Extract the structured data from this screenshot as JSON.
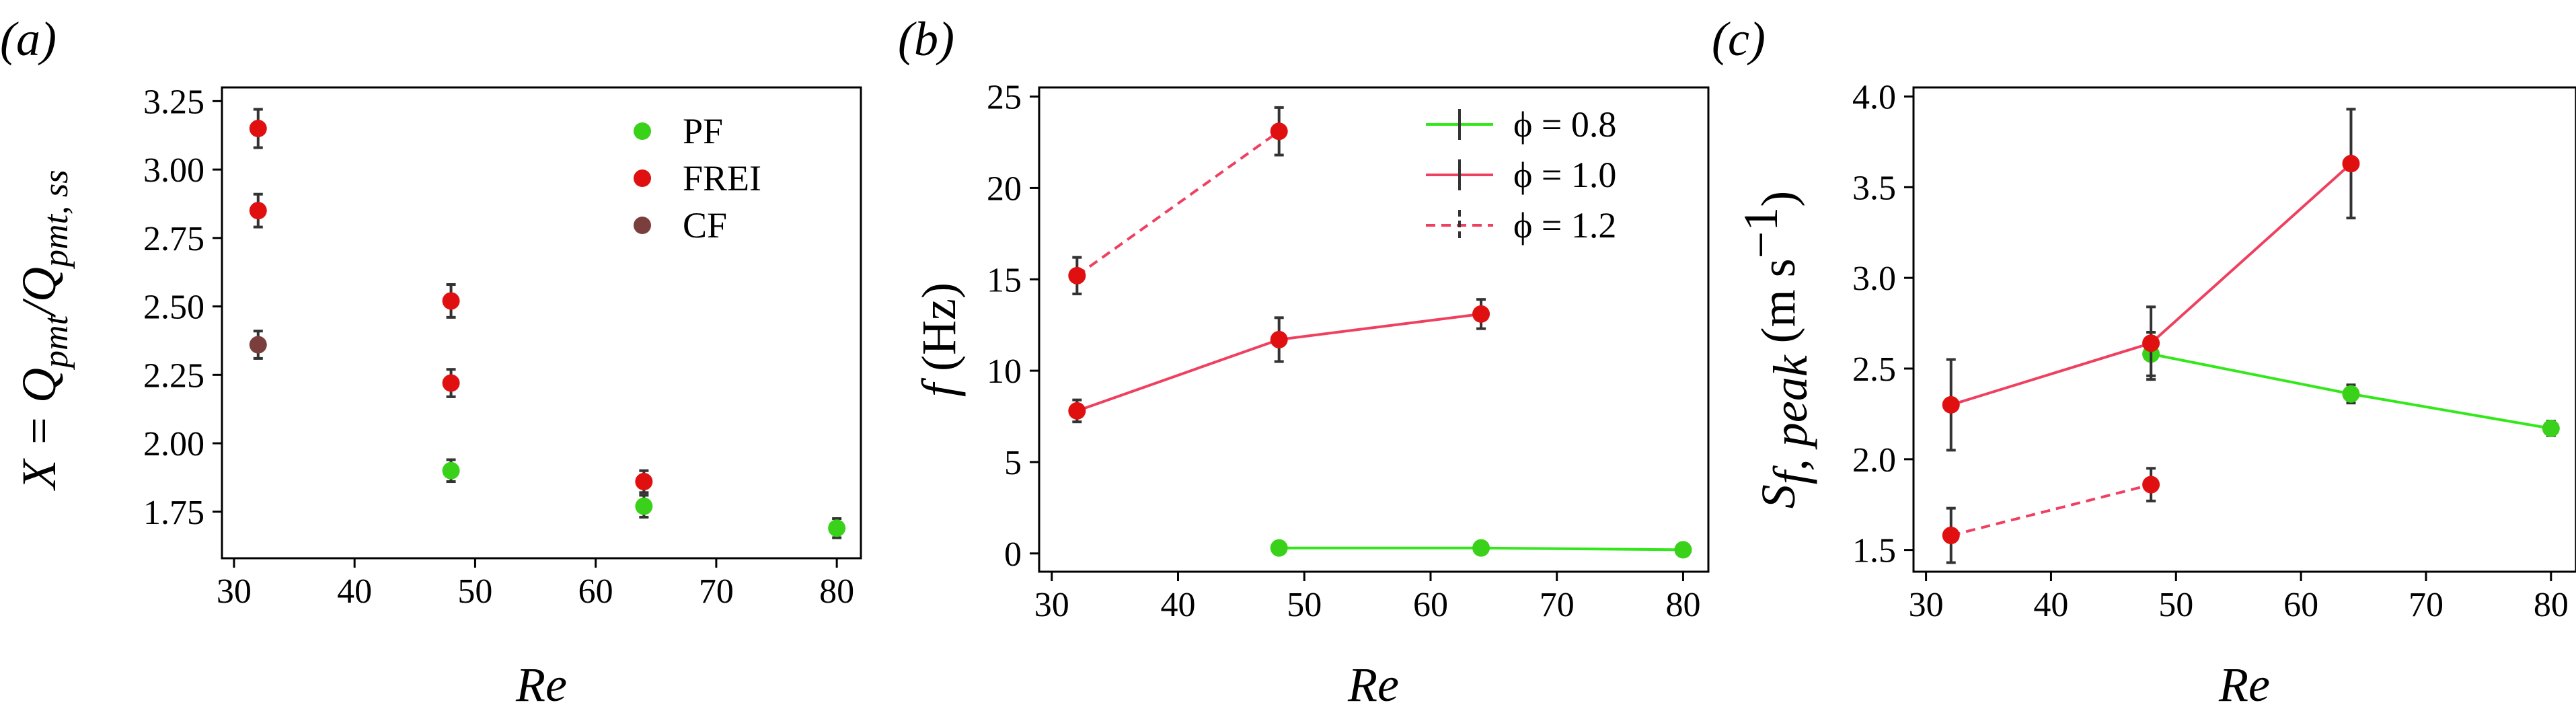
{
  "colors": {
    "pf": "#3ad11a",
    "frei": "#e01010",
    "cf": "#7a3e3c",
    "line_phi08": "#33e81a",
    "line_phi10": "#ef4060",
    "line_phi12": "#ef4060",
    "errorbar": "#333333"
  },
  "chart_data": [
    {
      "panel": "(a)",
      "type": "scatter",
      "xlabel": "Re",
      "ylabel": "X = Q_pmt/Q_pmt, ss",
      "xlim": [
        29,
        82
      ],
      "ylim": [
        1.58,
        3.3
      ],
      "xticks": [
        30,
        40,
        50,
        60,
        70,
        80
      ],
      "yticks": [
        1.75,
        2.0,
        2.25,
        2.5,
        2.75,
        3.0,
        3.25
      ],
      "ytick_labels": [
        "1.75",
        "2.00",
        "2.25",
        "2.50",
        "2.75",
        "3.00",
        "3.25"
      ],
      "legend_position": "top-right",
      "series": [
        {
          "name": "PF",
          "key": "pf",
          "points": [
            {
              "x": 48,
              "y": 1.9,
              "err": 0.04
            },
            {
              "x": 64,
              "y": 1.77,
              "err": 0.04
            },
            {
              "x": 80,
              "y": 1.69,
              "err": 0.035
            }
          ]
        },
        {
          "name": "FREI",
          "key": "frei",
          "points": [
            {
              "x": 32,
              "y": 3.15,
              "err": 0.07
            },
            {
              "x": 32,
              "y": 2.85,
              "err": 0.06
            },
            {
              "x": 48,
              "y": 2.52,
              "err": 0.06
            },
            {
              "x": 48,
              "y": 2.22,
              "err": 0.05
            },
            {
              "x": 64,
              "y": 1.86,
              "err": 0.04
            }
          ]
        },
        {
          "name": "CF",
          "key": "cf",
          "points": [
            {
              "x": 32,
              "y": 2.36,
              "err": 0.05
            }
          ]
        }
      ]
    },
    {
      "panel": "(b)",
      "type": "line",
      "xlabel": "Re",
      "ylabel_symbol": "f",
      "ylabel_unit": " (Hz)",
      "xlim": [
        29,
        82
      ],
      "ylim": [
        -1,
        25.5
      ],
      "xticks": [
        30,
        40,
        50,
        60,
        70,
        80
      ],
      "yticks": [
        0,
        5,
        10,
        15,
        20,
        25
      ],
      "ytick_labels": [
        "0",
        "5",
        "10",
        "15",
        "20",
        "25"
      ],
      "legend_position": "top-right",
      "series": [
        {
          "name": "ϕ = 0.8",
          "key": "phi08",
          "dashed": false,
          "points": [
            {
              "x": 48,
              "y": 0.3,
              "err": 0
            },
            {
              "x": 64,
              "y": 0.3,
              "err": 0
            },
            {
              "x": 80,
              "y": 0.2,
              "err": 0
            }
          ]
        },
        {
          "name": "ϕ = 1.0",
          "key": "phi10",
          "dashed": false,
          "points": [
            {
              "x": 32,
              "y": 7.8,
              "err": 0.6
            },
            {
              "x": 48,
              "y": 11.7,
              "err": 1.2
            },
            {
              "x": 64,
              "y": 13.1,
              "err": 0.8
            }
          ]
        },
        {
          "name": "ϕ = 1.2",
          "key": "phi12",
          "dashed": true,
          "points": [
            {
              "x": 32,
              "y": 15.2,
              "err": 1.0
            },
            {
              "x": 48,
              "y": 23.1,
              "err": 1.3
            }
          ]
        }
      ]
    },
    {
      "panel": "(c)",
      "type": "line",
      "xlabel": "Re",
      "ylabel_symbol": "S",
      "ylabel_subscript": "f, peak",
      "ylabel_unit": " (m s",
      "ylabel_exp": "−1",
      "ylabel_close": ")",
      "xlim": [
        29,
        82
      ],
      "ylim": [
        1.38,
        4.05
      ],
      "xticks": [
        30,
        40,
        50,
        60,
        70,
        80
      ],
      "yticks": [
        1.5,
        2.0,
        2.5,
        3.0,
        3.5,
        4.0
      ],
      "ytick_labels": [
        "1.5",
        "2.0",
        "2.5",
        "3.0",
        "3.5",
        "4.0"
      ],
      "series": [
        {
          "name": "ϕ = 0.8",
          "key": "phi08",
          "dashed": false,
          "points": [
            {
              "x": 48,
              "y": 2.58,
              "err": 0.12
            },
            {
              "x": 64,
              "y": 2.36,
              "err": 0.05
            },
            {
              "x": 80,
              "y": 2.17,
              "err": 0.04
            }
          ]
        },
        {
          "name": "ϕ = 1.0",
          "key": "phi10",
          "dashed": false,
          "points": [
            {
              "x": 32,
              "y": 2.3,
              "err": 0.25
            },
            {
              "x": 48,
              "y": 2.64,
              "err": 0.2
            },
            {
              "x": 64,
              "y": 3.63,
              "err": 0.3
            }
          ]
        },
        {
          "name": "ϕ = 1.2",
          "key": "phi12",
          "dashed": true,
          "points": [
            {
              "x": 32,
              "y": 1.58,
              "err": 0.15
            },
            {
              "x": 48,
              "y": 1.86,
              "err": 0.09
            }
          ]
        }
      ]
    }
  ]
}
